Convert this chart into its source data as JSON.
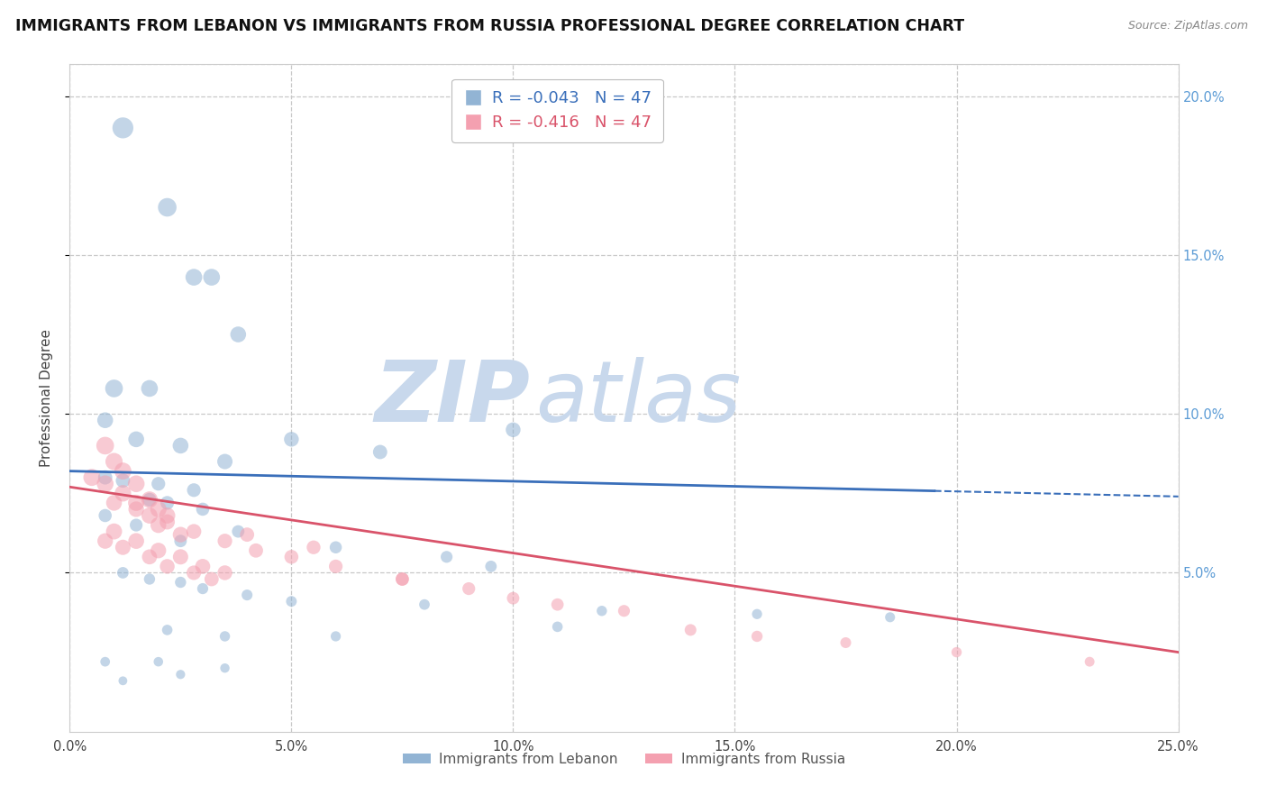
{
  "title": "IMMIGRANTS FROM LEBANON VS IMMIGRANTS FROM RUSSIA PROFESSIONAL DEGREE CORRELATION CHART",
  "source_text": "Source: ZipAtlas.com",
  "ylabel": "Professional Degree",
  "xlabel": "",
  "xlim": [
    0.0,
    0.25
  ],
  "ylim": [
    0.0,
    0.21
  ],
  "x_ticks": [
    0.0,
    0.05,
    0.1,
    0.15,
    0.2,
    0.25
  ],
  "x_tick_labels": [
    "0.0%",
    "5.0%",
    "10.0%",
    "15.0%",
    "20.0%",
    "25.0%"
  ],
  "y_ticks": [
    0.05,
    0.1,
    0.15,
    0.2
  ],
  "y_tick_labels": [
    "5.0%",
    "10.0%",
    "15.0%",
    "20.0%"
  ],
  "legend_blue_label": "Immigrants from Lebanon",
  "legend_pink_label": "Immigrants from Russia",
  "R_blue": "-0.043",
  "N_blue": "47",
  "R_pink": "-0.416",
  "N_pink": "47",
  "blue_color": "#92b4d4",
  "pink_color": "#f4a0b0",
  "line_blue_color": "#3a6fba",
  "line_pink_color": "#d9536a",
  "watermark_color": "#c8d8ec",
  "background_color": "#ffffff",
  "grid_color": "#c8c8c8",
  "lebanon_x": [
    0.012,
    0.022,
    0.028,
    0.032,
    0.01,
    0.018,
    0.038,
    0.008,
    0.015,
    0.025,
    0.035,
    0.05,
    0.07,
    0.1,
    0.008,
    0.012,
    0.02,
    0.028,
    0.018,
    0.022,
    0.03,
    0.008,
    0.015,
    0.038,
    0.025,
    0.06,
    0.085,
    0.095,
    0.012,
    0.018,
    0.025,
    0.03,
    0.04,
    0.05,
    0.08,
    0.12,
    0.155,
    0.185,
    0.022,
    0.035,
    0.06,
    0.11,
    0.008,
    0.02,
    0.035,
    0.025,
    0.012
  ],
  "lebanon_y": [
    0.19,
    0.165,
    0.143,
    0.143,
    0.108,
    0.108,
    0.125,
    0.098,
    0.092,
    0.09,
    0.085,
    0.092,
    0.088,
    0.095,
    0.08,
    0.079,
    0.078,
    0.076,
    0.073,
    0.072,
    0.07,
    0.068,
    0.065,
    0.063,
    0.06,
    0.058,
    0.055,
    0.052,
    0.05,
    0.048,
    0.047,
    0.045,
    0.043,
    0.041,
    0.04,
    0.038,
    0.037,
    0.036,
    0.032,
    0.03,
    0.03,
    0.033,
    0.022,
    0.022,
    0.02,
    0.018,
    0.016
  ],
  "russia_x": [
    0.008,
    0.01,
    0.012,
    0.015,
    0.018,
    0.02,
    0.022,
    0.005,
    0.008,
    0.012,
    0.015,
    0.018,
    0.02,
    0.025,
    0.01,
    0.015,
    0.02,
    0.025,
    0.03,
    0.035,
    0.008,
    0.012,
    0.018,
    0.022,
    0.028,
    0.032,
    0.01,
    0.015,
    0.022,
    0.028,
    0.035,
    0.042,
    0.05,
    0.06,
    0.075,
    0.09,
    0.11,
    0.14,
    0.04,
    0.055,
    0.075,
    0.1,
    0.125,
    0.155,
    0.175,
    0.2,
    0.23
  ],
  "russia_y": [
    0.09,
    0.085,
    0.082,
    0.078,
    0.073,
    0.07,
    0.068,
    0.08,
    0.078,
    0.075,
    0.072,
    0.068,
    0.065,
    0.062,
    0.063,
    0.06,
    0.057,
    0.055,
    0.052,
    0.05,
    0.06,
    0.058,
    0.055,
    0.052,
    0.05,
    0.048,
    0.072,
    0.07,
    0.066,
    0.063,
    0.06,
    0.057,
    0.055,
    0.052,
    0.048,
    0.045,
    0.04,
    0.032,
    0.062,
    0.058,
    0.048,
    0.042,
    0.038,
    0.03,
    0.028,
    0.025,
    0.022
  ],
  "lebanon_sizes": [
    280,
    220,
    180,
    180,
    200,
    180,
    160,
    160,
    160,
    160,
    150,
    140,
    130,
    140,
    130,
    130,
    120,
    120,
    120,
    120,
    110,
    110,
    105,
    100,
    100,
    95,
    90,
    85,
    85,
    80,
    80,
    78,
    76,
    74,
    72,
    68,
    66,
    64,
    70,
    68,
    66,
    70,
    60,
    58,
    56,
    54,
    50
  ],
  "russia_sizes": [
    200,
    190,
    185,
    180,
    175,
    170,
    165,
    185,
    180,
    175,
    170,
    165,
    160,
    155,
    165,
    160,
    155,
    150,
    145,
    140,
    155,
    150,
    145,
    140,
    135,
    130,
    160,
    155,
    148,
    142,
    136,
    130,
    125,
    120,
    112,
    105,
    98,
    88,
    130,
    122,
    112,
    100,
    90,
    80,
    75,
    68,
    62
  ],
  "line_blue_start_y": 0.082,
  "line_blue_end_y": 0.074,
  "line_blue_solid_end": 0.195,
  "line_pink_start_y": 0.077,
  "line_pink_end_y": 0.025
}
